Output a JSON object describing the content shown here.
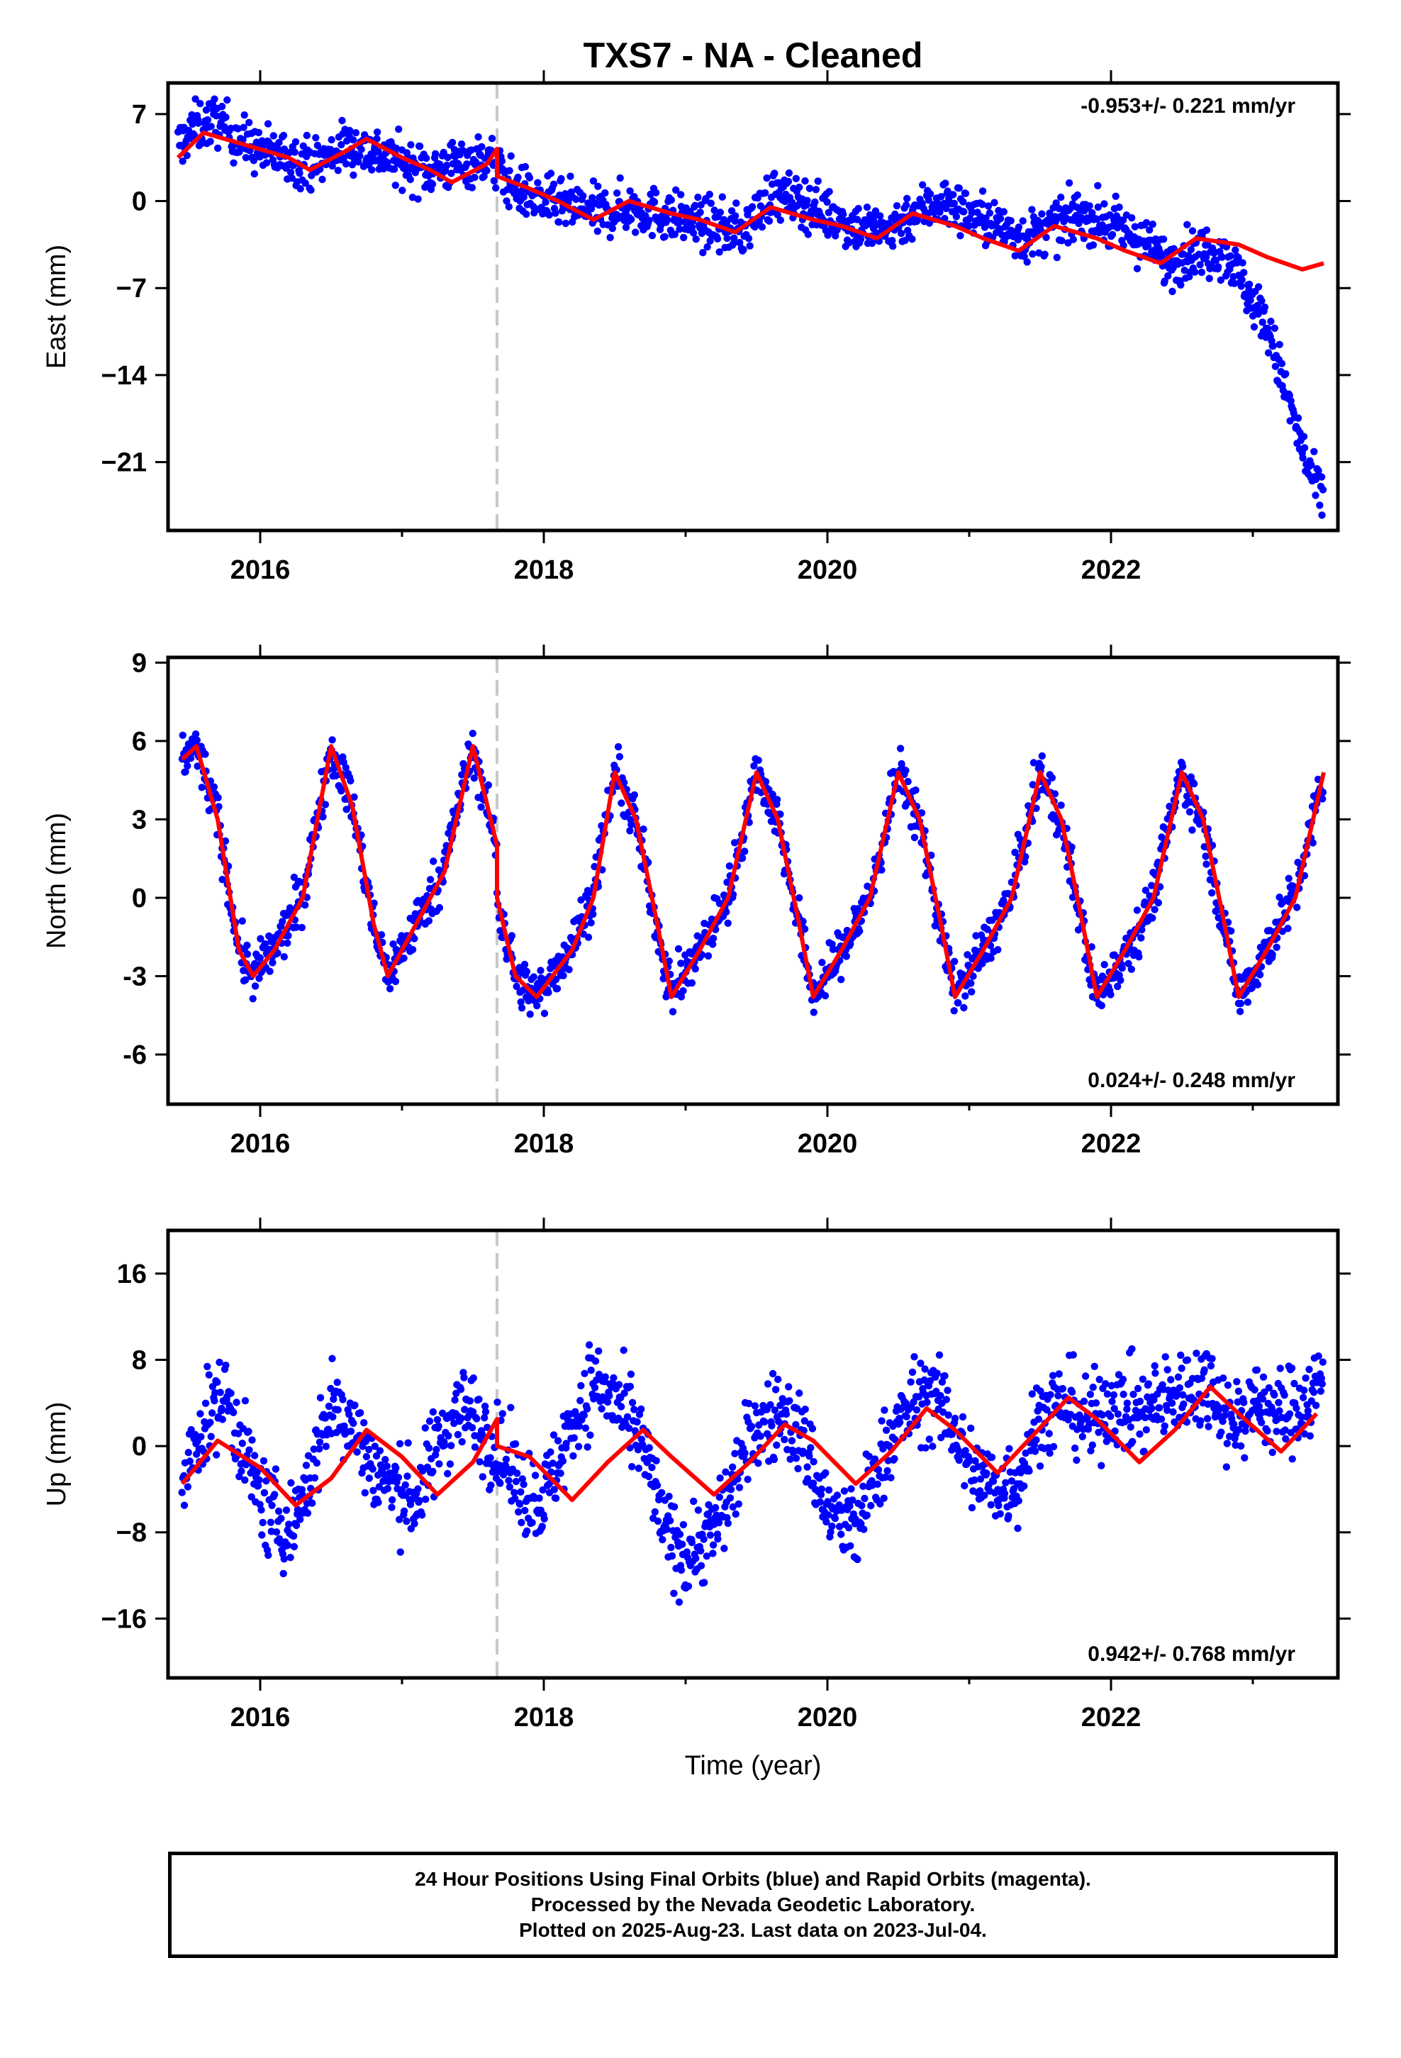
{
  "chart_data": [
    {
      "type": "scatter",
      "title": "TXS7  - NA - Cleaned",
      "ylabel": "East (mm)",
      "xlabel": "",
      "annotation": "-0.953+/- 0.221 mm/yr",
      "annotation_position": "top-right",
      "xlim": [
        2015.35,
        2023.6
      ],
      "ylim": [
        -26.5,
        9.5
      ],
      "xticks": [
        2016,
        2018,
        2020,
        2022
      ],
      "yticks": [
        7,
        0,
        -7,
        -14,
        -21
      ],
      "ytick_labels": [
        "7",
        "0",
        "−7",
        "−14",
        "−21"
      ],
      "xtick_labels": [
        "2016",
        "2018",
        "2020",
        "2022"
      ],
      "offset_line_x": 2017.67,
      "series": [
        {
          "kind": "points",
          "color": "#0000ff",
          "x": [
            2015.42,
            2015.55,
            2015.7,
            2015.85,
            2016.0,
            2016.2,
            2016.4,
            2016.6,
            2016.8,
            2017.0,
            2017.2,
            2017.4,
            2017.6,
            2017.8,
            2018.0,
            2018.2,
            2018.4,
            2018.6,
            2018.8,
            2019.0,
            2019.2,
            2019.4,
            2019.6,
            2019.8,
            2020.0,
            2020.2,
            2020.4,
            2020.6,
            2020.8,
            2021.0,
            2021.2,
            2021.4,
            2021.6,
            2021.8,
            2022.0,
            2022.2,
            2022.4,
            2022.6,
            2022.8,
            2022.9,
            2023.0,
            2023.1,
            2023.2,
            2023.3,
            2023.4,
            2023.5
          ],
          "y": [
            4.5,
            6,
            6.5,
            5,
            4,
            3.5,
            3,
            4.5,
            4,
            3,
            2.5,
            3,
            3.5,
            1,
            0,
            -0.5,
            -1,
            -0.5,
            -1,
            -1.5,
            -2,
            -2.5,
            0.5,
            0,
            -1,
            -2,
            -2.5,
            -1,
            0,
            -1,
            -2,
            -3,
            -2,
            -1,
            -2,
            -3,
            -5,
            -4,
            -4,
            -6,
            -8,
            -10,
            -14,
            -18,
            -22,
            -24
          ]
        },
        {
          "kind": "model",
          "color": "#ff0000",
          "x": [
            2015.42,
            2015.6,
            2015.9,
            2016.2,
            2016.35,
            2016.6,
            2016.75,
            2017.0,
            2017.2,
            2017.35,
            2017.6,
            2017.67,
            2017.67,
            2017.9,
            2018.1,
            2018.35,
            2018.6,
            2018.9,
            2019.1,
            2019.35,
            2019.6,
            2019.9,
            2020.1,
            2020.35,
            2020.6,
            2020.9,
            2021.1,
            2021.35,
            2021.6,
            2021.9,
            2022.1,
            2022.35,
            2022.6,
            2022.9,
            2023.1,
            2023.35,
            2023.5
          ],
          "y": [
            3.5,
            5.5,
            4.5,
            3.5,
            2.5,
            4,
            5,
            3.5,
            2.5,
            1.5,
            3,
            4.2,
            2,
            1,
            0,
            -1.5,
            0,
            -1,
            -1.5,
            -2.5,
            -0.5,
            -1.5,
            -2,
            -3,
            -1,
            -2,
            -3,
            -4,
            -2,
            -3,
            -4,
            -5,
            -3,
            -3.5,
            -4.5,
            -5.5,
            -5
          ]
        }
      ]
    },
    {
      "type": "scatter",
      "title": "",
      "ylabel": "North (mm)",
      "xlabel": "",
      "annotation": "0.024+/- 0.248 mm/yr",
      "annotation_position": "bottom-right",
      "xlim": [
        2015.35,
        2023.6
      ],
      "ylim": [
        -7.9,
        9.2
      ],
      "xticks": [
        2016,
        2018,
        2020,
        2022
      ],
      "yticks": [
        9,
        6,
        3,
        0,
        -3,
        -6
      ],
      "ytick_labels": [
        "9",
        "6",
        "3",
        "0",
        "-3",
        "-6"
      ],
      "xtick_labels": [
        "2016",
        "2018",
        "2020",
        "2022"
      ],
      "offset_line_x": 2017.67,
      "series": [
        {
          "kind": "points",
          "color": "#0000ff",
          "x": [
            2015.45,
            2015.6,
            2015.75,
            2015.9,
            2016.05,
            2016.2,
            2016.35,
            2016.5,
            2016.65,
            2016.8,
            2016.95,
            2017.1,
            2017.25,
            2017.4,
            2017.55,
            2017.7,
            2017.85,
            2018.0,
            2018.2,
            2018.35,
            2018.5,
            2018.7,
            2018.85,
            2019.0,
            2019.2,
            2019.35,
            2019.5,
            2019.7,
            2019.85,
            2020.0,
            2020.2,
            2020.35,
            2020.5,
            2020.7,
            2020.85,
            2021.0,
            2021.2,
            2021.35,
            2021.5,
            2021.7,
            2021.85,
            2022.0,
            2022.2,
            2022.35,
            2022.5,
            2022.7,
            2022.85,
            2023.0,
            2023.2,
            2023.35,
            2023.5
          ],
          "y": [
            6,
            5,
            2,
            -3,
            -2,
            -1,
            2,
            6,
            4,
            -2,
            -2,
            -1,
            2,
            6,
            4,
            -1,
            -4,
            -3,
            0,
            2,
            5,
            0,
            -3,
            -3,
            -1,
            1,
            6,
            2,
            -3,
            -3,
            -1,
            1,
            6,
            0,
            -3,
            -3,
            -1,
            2,
            5,
            0,
            -4,
            -3,
            -2,
            2,
            5,
            0,
            -3,
            -3,
            1,
            2,
            3
          ]
        },
        {
          "kind": "model",
          "color": "#ff0000",
          "x": [
            2015.45,
            2015.55,
            2015.7,
            2015.85,
            2015.95,
            2016.1,
            2016.3,
            2016.5,
            2016.65,
            2016.8,
            2016.9,
            2017.1,
            2017.3,
            2017.5,
            2017.67,
            2017.67,
            2017.8,
            2017.95,
            2018.2,
            2018.35,
            2018.5,
            2018.65,
            2018.8,
            2018.9,
            2019.1,
            2019.3,
            2019.5,
            2019.65,
            2019.8,
            2019.9,
            2020.1,
            2020.3,
            2020.5,
            2020.65,
            2020.8,
            2020.9,
            2021.1,
            2021.3,
            2021.5,
            2021.65,
            2021.8,
            2021.9,
            2022.1,
            2022.3,
            2022.5,
            2022.65,
            2022.8,
            2022.9,
            2023.1,
            2023.3,
            2023.5
          ],
          "y": [
            5.3,
            5.8,
            3,
            -2,
            -3,
            -2,
            0,
            5.8,
            3.5,
            -1,
            -3,
            -1,
            1,
            5.8,
            2,
            0,
            -3,
            -3.8,
            -2,
            0,
            4.8,
            3,
            -1,
            -3.8,
            -2,
            0,
            4.8,
            3,
            -1,
            -3.8,
            -2,
            0,
            4.8,
            3,
            -1,
            -3.8,
            -2,
            0,
            4.8,
            3,
            -1,
            -3.8,
            -2,
            0,
            4.8,
            3,
            -1,
            -3.8,
            -2,
            0,
            4.8
          ]
        }
      ]
    },
    {
      "type": "scatter",
      "title": "",
      "ylabel": "Up (mm)",
      "xlabel": "Time (year)",
      "annotation": "0.942+/- 0.768 mm/yr",
      "annotation_position": "bottom-right",
      "xlim": [
        2015.35,
        2023.6
      ],
      "ylim": [
        -21.5,
        20
      ],
      "xticks": [
        2016,
        2018,
        2020,
        2022
      ],
      "yticks": [
        16,
        8,
        0,
        -8,
        -16
      ],
      "ytick_labels": [
        "16",
        "8",
        "0",
        "−8",
        "−16"
      ],
      "xtick_labels": [
        "2016",
        "2018",
        "2020",
        "2022"
      ],
      "offset_line_x": 2017.67,
      "series": [
        {
          "kind": "points",
          "color": "#0000ff",
          "x": [
            2015.45,
            2015.6,
            2015.75,
            2015.9,
            2016.05,
            2016.2,
            2016.35,
            2016.5,
            2016.65,
            2016.8,
            2016.95,
            2017.1,
            2017.25,
            2017.4,
            2017.55,
            2017.7,
            2017.85,
            2018.0,
            2018.2,
            2018.35,
            2018.5,
            2018.7,
            2018.85,
            2019.0,
            2019.2,
            2019.35,
            2019.5,
            2019.7,
            2019.85,
            2020.0,
            2020.2,
            2020.35,
            2020.5,
            2020.7,
            2020.85,
            2021.0,
            2021.2,
            2021.35,
            2021.5,
            2021.7,
            2021.85,
            2022.0,
            2022.2,
            2022.35,
            2022.5,
            2022.7,
            2022.85,
            2023.0,
            2023.2,
            2023.35,
            2023.5
          ],
          "y": [
            -4,
            2,
            5,
            -1,
            -6,
            -8,
            -3,
            4,
            2,
            -2,
            -4,
            -5,
            0,
            4,
            2,
            -1,
            -4,
            -5,
            2,
            6,
            4,
            0,
            -8,
            -10,
            -8,
            -3,
            2,
            3,
            0,
            -6,
            -8,
            -2,
            2,
            5,
            3,
            -2,
            -4,
            -3,
            3,
            4,
            2,
            4,
            3,
            4,
            5,
            6,
            2,
            4,
            3,
            4,
            6
          ]
        },
        {
          "kind": "model",
          "color": "#ff0000",
          "x": [
            2015.45,
            2015.7,
            2016.0,
            2016.25,
            2016.5,
            2016.75,
            2017.0,
            2017.25,
            2017.5,
            2017.67,
            2017.67,
            2017.9,
            2018.2,
            2018.45,
            2018.7,
            2018.9,
            2019.2,
            2019.45,
            2019.7,
            2019.9,
            2020.2,
            2020.45,
            2020.7,
            2020.9,
            2021.2,
            2021.45,
            2021.7,
            2021.9,
            2022.2,
            2022.45,
            2022.7,
            2022.9,
            2023.2,
            2023.45
          ],
          "y": [
            -3.5,
            0.5,
            -2,
            -5.5,
            -3,
            1.5,
            -1,
            -4.5,
            -1.5,
            2.5,
            0,
            -1,
            -5,
            -1.5,
            1.5,
            -1,
            -4.5,
            -1.5,
            2,
            0.5,
            -3.5,
            -0.5,
            3.5,
            1.5,
            -2.5,
            1,
            4.5,
            2.5,
            -1.5,
            1.5,
            5.5,
            3,
            -0.5,
            3
          ]
        }
      ]
    }
  ],
  "footer": {
    "line1": "24 Hour Positions Using Final Orbits (blue) and Rapid Orbits (magenta).",
    "line2": "Processed by the Nevada Geodetic Laboratory.",
    "line3": "Plotted on 2025-Aug-23. Last data on 2023-Jul-04."
  }
}
